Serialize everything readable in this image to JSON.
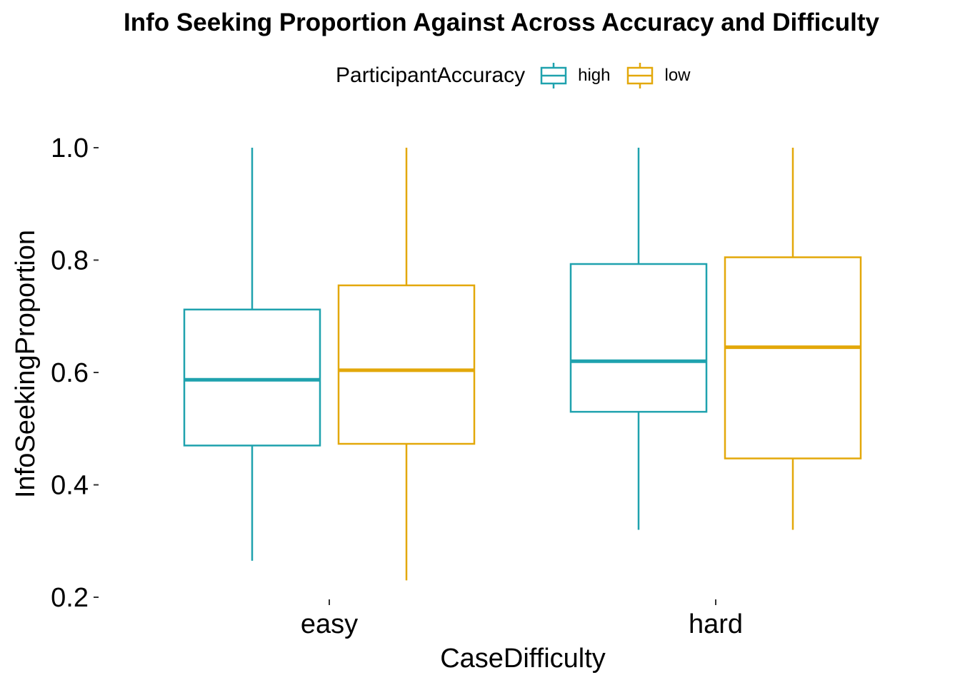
{
  "chart_data": {
    "type": "boxplot",
    "title": "Info Seeking Proportion Against Across Accuracy and Difficulty",
    "xlabel": "CaseDifficulty",
    "ylabel": "InfoSeekingProportion",
    "categories": [
      "easy",
      "hard"
    ],
    "ylim": [
      0.2,
      1.0
    ],
    "yticks": [
      "0.2",
      "0.4",
      "0.6",
      "0.8",
      "1.0"
    ],
    "grid": false,
    "legend": {
      "title": "ParticipantAccuracy",
      "position": "top",
      "entries": [
        "high",
        "low"
      ]
    },
    "series": [
      {
        "name": "high",
        "color": "#1FA2AE",
        "boxes": [
          {
            "category": "easy",
            "min": 0.265,
            "q1": 0.47,
            "median": 0.587,
            "q3": 0.712,
            "max": 1.0
          },
          {
            "category": "hard",
            "min": 0.32,
            "q1": 0.53,
            "median": 0.62,
            "q3": 0.793,
            "max": 1.0
          }
        ]
      },
      {
        "name": "low",
        "color": "#E3A80A",
        "boxes": [
          {
            "category": "easy",
            "min": 0.23,
            "q1": 0.473,
            "median": 0.604,
            "q3": 0.755,
            "max": 1.0
          },
          {
            "category": "hard",
            "min": 0.32,
            "q1": 0.447,
            "median": 0.645,
            "q3": 0.805,
            "max": 1.0
          }
        ]
      }
    ]
  }
}
